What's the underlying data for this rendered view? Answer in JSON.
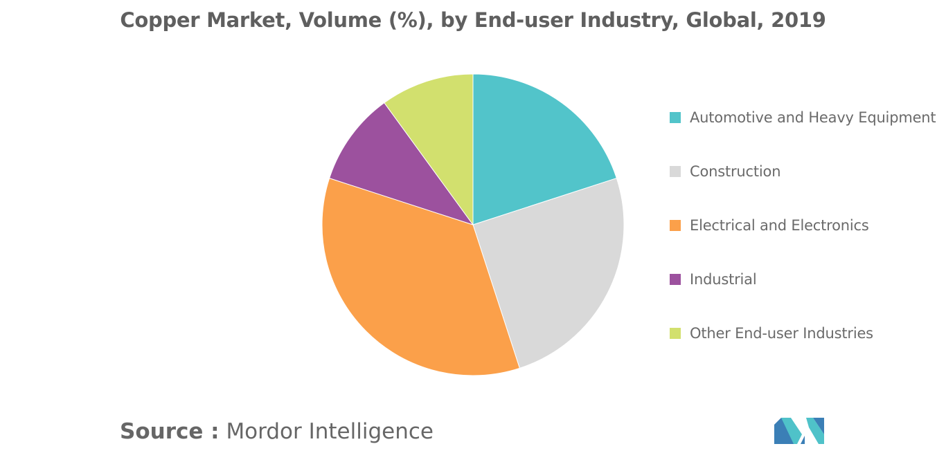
{
  "chart_data": {
    "type": "pie",
    "title": "Copper Market, Volume (%), by End-user Industry, Global, 2019",
    "legend_position": "right",
    "slices": [
      {
        "label": "Automotive and Heavy Equipment",
        "value": 20,
        "color": "#52c4ca"
      },
      {
        "label": "Construction",
        "value": 25,
        "color": "#d9d9d9"
      },
      {
        "label": "Electrical and Electronics",
        "value": 35,
        "color": "#fba04a"
      },
      {
        "label": "Industrial",
        "value": 10,
        "color": "#9c519e"
      },
      {
        "label": "Other End-user Industries",
        "value": 10,
        "color": "#d2e06e"
      }
    ]
  },
  "source": {
    "key": "Source :",
    "value": "Mordor Intelligence"
  },
  "logo": {
    "icon": "mordor-intelligence-logo",
    "colors": [
      "#3b7fb6",
      "#4fc2c9"
    ]
  }
}
